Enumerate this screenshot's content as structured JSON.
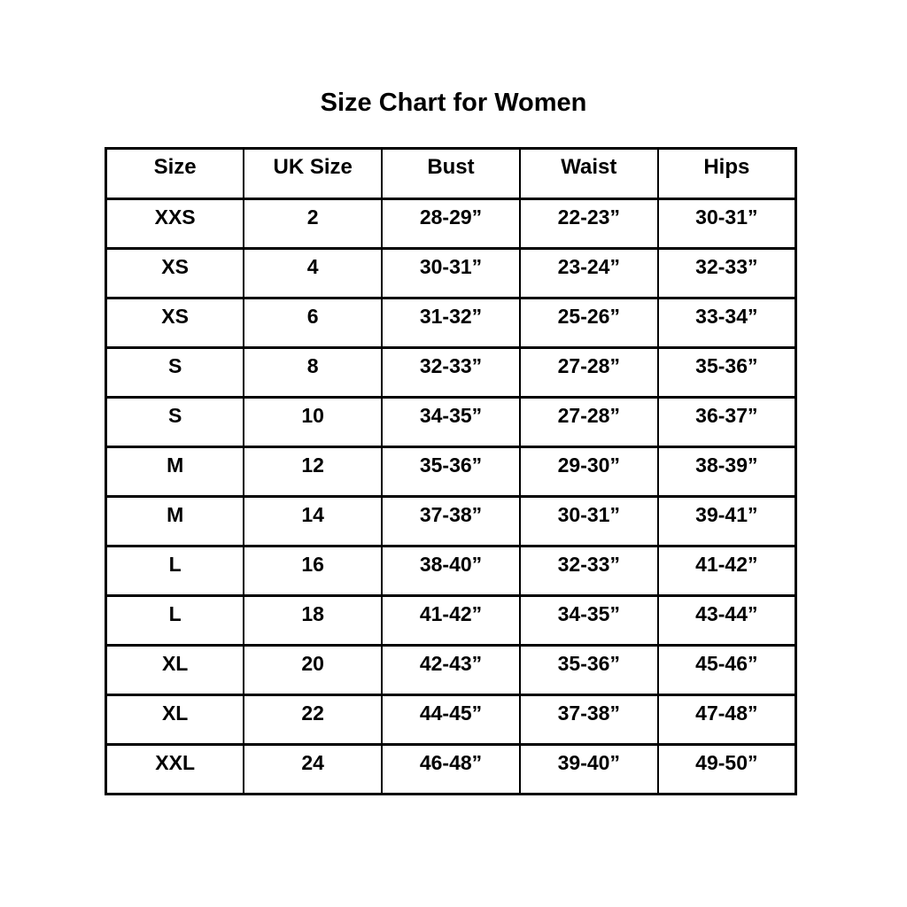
{
  "title": "Size Chart for Women",
  "chart_data": {
    "type": "table",
    "title": "Size Chart for Women",
    "columns": [
      "Size",
      "UK Size",
      "Bust",
      "Waist",
      "Hips"
    ],
    "rows": [
      [
        "XXS",
        "2",
        "28-29”",
        "22-23”",
        "30-31”"
      ],
      [
        "XS",
        "4",
        "30-31”",
        "23-24”",
        "32-33”"
      ],
      [
        "XS",
        "6",
        "31-32”",
        "25-26”",
        "33-34”"
      ],
      [
        "S",
        "8",
        "32-33”",
        "27-28”",
        "35-36”"
      ],
      [
        "S",
        "10",
        "34-35”",
        "27-28”",
        "36-37”"
      ],
      [
        "M",
        "12",
        "35-36”",
        "29-30”",
        "38-39”"
      ],
      [
        "M",
        "14",
        "37-38”",
        "30-31”",
        "39-41”"
      ],
      [
        "L",
        "16",
        "38-40”",
        "32-33”",
        "41-42”"
      ],
      [
        "L",
        "18",
        "41-42”",
        "34-35”",
        "43-44”"
      ],
      [
        "XL",
        "20",
        "42-43”",
        "35-36”",
        "45-46”"
      ],
      [
        "XL",
        "22",
        "44-45”",
        "37-38”",
        "47-48”"
      ],
      [
        "XXL",
        "24",
        "46-48”",
        "39-40”",
        "49-50”"
      ]
    ],
    "layout": {
      "header_row": true,
      "grid": "all-borders",
      "column_count": 5,
      "row_count": 12
    }
  },
  "colors": {
    "text": "#000000",
    "border": "#000000",
    "background": "#ffffff"
  }
}
